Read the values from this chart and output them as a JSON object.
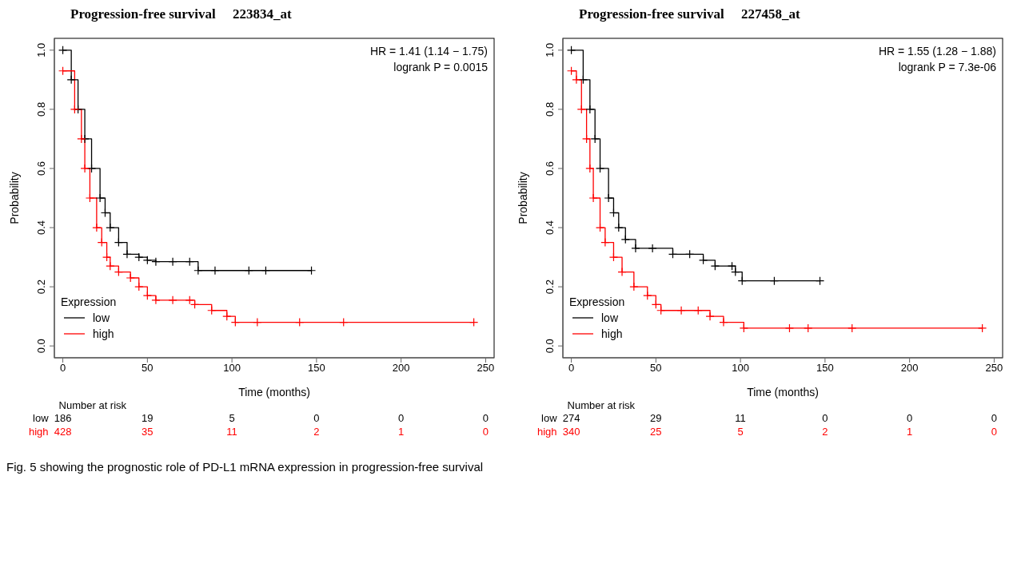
{
  "chart_data": [
    {
      "type": "step",
      "title": "Progression-free survival     223834_at",
      "xlabel": "Time (months)",
      "ylabel": "Probability",
      "legend_title": "Expression",
      "legend": "bottom left",
      "marker": "cross",
      "grid": false,
      "xlim": [
        -5,
        255
      ],
      "xticks": [
        0,
        50,
        100,
        150,
        200,
        250
      ],
      "ylim": [
        -0.04,
        1.04
      ],
      "yticks": [
        {
          "value": 0,
          "label": "0.0"
        },
        {
          "value": 0.2,
          "label": "0.2"
        },
        {
          "value": 0.4,
          "label": "0.4"
        },
        {
          "value": 0.6,
          "label": "0.6"
        },
        {
          "value": 0.8,
          "label": "0.8"
        },
        {
          "value": 1,
          "label": "1.0"
        }
      ],
      "series": [
        {
          "name": "low",
          "color": "#000000",
          "x": [
            0,
            5,
            9,
            13,
            17,
            22,
            25,
            28,
            33,
            38,
            45,
            50,
            55,
            65,
            75,
            80,
            90,
            110,
            120,
            147
          ],
          "values": [
            1.0,
            0.9,
            0.8,
            0.7,
            0.6,
            0.5,
            0.45,
            0.4,
            0.35,
            0.31,
            0.3,
            0.29,
            0.285,
            0.285,
            0.285,
            0.255,
            0.255,
            0.255,
            0.255,
            0.255
          ]
        },
        {
          "name": "high",
          "color": "#ff0000",
          "x": [
            0,
            7,
            11,
            13,
            16,
            20,
            23,
            26,
            28,
            33,
            40,
            45,
            50,
            55,
            65,
            75,
            78,
            88,
            97,
            102,
            115,
            140,
            166,
            243
          ],
          "values": [
            0.93,
            0.8,
            0.7,
            0.6,
            0.5,
            0.4,
            0.35,
            0.3,
            0.27,
            0.25,
            0.23,
            0.2,
            0.17,
            0.155,
            0.155,
            0.155,
            0.14,
            0.12,
            0.1,
            0.08,
            0.08,
            0.08,
            0.08,
            0.08
          ]
        }
      ],
      "annotations": [
        "HR = 1.41 (1.14 − 1.75)",
        "logrank P = 0.0015",
        "Number at risk",
        "low 186 19 5 0 0 0",
        "high 428 35 11 2 1 0"
      ]
    },
    {
      "type": "step",
      "title": "Progression-free survival     227458_at",
      "xlabel": "Time (months)",
      "ylabel": "Probability",
      "legend_title": "Expression",
      "legend": "bottom left",
      "marker": "cross",
      "grid": false,
      "xlim": [
        -5,
        255
      ],
      "xticks": [
        0,
        50,
        100,
        150,
        200,
        250
      ],
      "ylim": [
        -0.04,
        1.04
      ],
      "yticks": [
        {
          "value": 0,
          "label": "0.0"
        },
        {
          "value": 0.2,
          "label": "0.2"
        },
        {
          "value": 0.4,
          "label": "0.4"
        },
        {
          "value": 0.6,
          "label": "0.6"
        },
        {
          "value": 0.8,
          "label": "0.8"
        },
        {
          "value": 1,
          "label": "1.0"
        }
      ],
      "series": [
        {
          "name": "low",
          "color": "#000000",
          "x": [
            0,
            7,
            11,
            14,
            17,
            22,
            25,
            28,
            32,
            38,
            48,
            60,
            70,
            78,
            85,
            95,
            97,
            101,
            120,
            147
          ],
          "values": [
            1.0,
            0.9,
            0.8,
            0.7,
            0.6,
            0.5,
            0.45,
            0.4,
            0.36,
            0.33,
            0.33,
            0.31,
            0.31,
            0.29,
            0.27,
            0.27,
            0.25,
            0.22,
            0.22,
            0.22
          ]
        },
        {
          "name": "high",
          "color": "#ff0000",
          "x": [
            0,
            3,
            6,
            9,
            11,
            13,
            17,
            20,
            25,
            30,
            37,
            45,
            50,
            53,
            65,
            75,
            82,
            90,
            102,
            129,
            140,
            166,
            243
          ],
          "values": [
            0.93,
            0.9,
            0.8,
            0.7,
            0.6,
            0.5,
            0.4,
            0.35,
            0.3,
            0.25,
            0.2,
            0.17,
            0.14,
            0.12,
            0.12,
            0.12,
            0.1,
            0.08,
            0.06,
            0.06,
            0.06,
            0.06,
            0.06
          ]
        }
      ],
      "annotations": [
        "HR = 1.55 (1.28 − 1.88)",
        "logrank P = 7.3e-06",
        "Number at risk",
        "low 274 29 11 0 0 0",
        "high 340 25 5 2 1 0",
        "Fig. 5 showing the prognostic role of PD-L1 mRNA expression in progression-free survival"
      ]
    }
  ]
}
